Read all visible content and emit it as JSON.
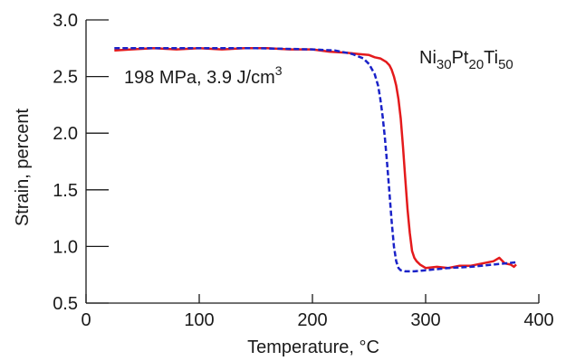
{
  "chart_data": {
    "type": "line",
    "xlabel": "Temperature, °C",
    "ylabel": "Strain, percent",
    "xlim": [
      0,
      400
    ],
    "ylim": [
      0.5,
      3.0
    ],
    "x_ticks": [
      "0",
      "100",
      "200",
      "300",
      "400"
    ],
    "y_ticks": [
      "0.5",
      "1.0",
      "1.5",
      "2.0",
      "2.5",
      "3.0"
    ],
    "grid": false,
    "annotations": {
      "condition_text": "198 MPa, 3.9 J/cm",
      "condition_sup": "3",
      "alloy": [
        {
          "text": "Ni",
          "sub": false
        },
        {
          "text": "30",
          "sub": true
        },
        {
          "text": "Pt",
          "sub": false
        },
        {
          "text": "20",
          "sub": true
        },
        {
          "text": "Ti",
          "sub": false
        },
        {
          "text": "50",
          "sub": true
        }
      ]
    },
    "series": [
      {
        "style": "solid",
        "color": "#e41a1c",
        "x": [
          25,
          40,
          60,
          80,
          100,
          120,
          140,
          160,
          180,
          200,
          215,
          230,
          240,
          250,
          255,
          260,
          265,
          268,
          270,
          272,
          274,
          276,
          278,
          280,
          282,
          284,
          286,
          288,
          290,
          292,
          295,
          300,
          310,
          320,
          330,
          340,
          350,
          360,
          365,
          370,
          375,
          378,
          380
        ],
        "y": [
          2.73,
          2.74,
          2.75,
          2.74,
          2.75,
          2.74,
          2.75,
          2.75,
          2.74,
          2.74,
          2.72,
          2.71,
          2.7,
          2.69,
          2.67,
          2.66,
          2.63,
          2.6,
          2.56,
          2.5,
          2.42,
          2.3,
          2.13,
          1.88,
          1.6,
          1.33,
          1.12,
          0.96,
          0.9,
          0.87,
          0.84,
          0.81,
          0.82,
          0.81,
          0.83,
          0.83,
          0.85,
          0.87,
          0.9,
          0.85,
          0.84,
          0.82,
          0.84
        ]
      },
      {
        "style": "dashed",
        "color": "#1a22c8",
        "x": [
          25,
          50,
          100,
          150,
          200,
          220,
          235,
          245,
          250,
          255,
          258,
          260,
          262,
          264,
          266,
          268,
          270,
          272,
          274,
          276,
          278,
          282,
          290,
          300,
          320,
          340,
          360,
          380
        ],
        "y": [
          2.75,
          2.75,
          2.75,
          2.75,
          2.74,
          2.73,
          2.7,
          2.66,
          2.61,
          2.52,
          2.42,
          2.3,
          2.15,
          1.96,
          1.73,
          1.48,
          1.22,
          1.0,
          0.87,
          0.81,
          0.79,
          0.78,
          0.78,
          0.79,
          0.81,
          0.82,
          0.84,
          0.86
        ]
      }
    ]
  }
}
